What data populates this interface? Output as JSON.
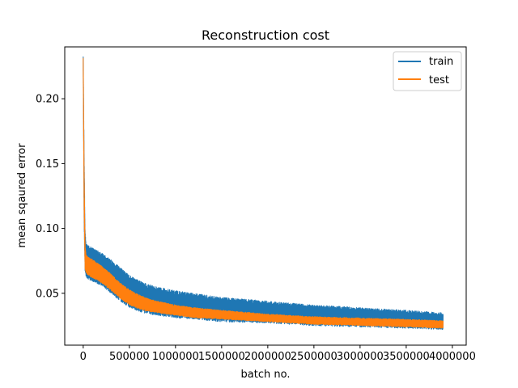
{
  "chart_data": {
    "type": "line",
    "title": "Reconstruction cost",
    "xlabel": "batch no.",
    "ylabel": "mean sqaured error",
    "xlim": [
      -200000,
      4150000
    ],
    "ylim": [
      0.01,
      0.24
    ],
    "xticks": [
      0,
      500000,
      1000000,
      1500000,
      2000000,
      2500000,
      3000000,
      3500000,
      4000000
    ],
    "xtick_labels": [
      "0",
      "500000",
      "1000000",
      "1500000",
      "2000000",
      "2500000",
      "3000000",
      "3500000",
      "4000000"
    ],
    "yticks": [
      0.05,
      0.1,
      0.15,
      0.2
    ],
    "ytick_labels": [
      "0.05",
      "0.10",
      "0.15",
      "0.20"
    ],
    "grid": false,
    "legend_position": "top-right",
    "series": [
      {
        "name": "train",
        "color": "#1f77b4",
        "x": [
          0,
          10000,
          20000,
          30000,
          50000,
          100000,
          200000,
          300000,
          400000,
          500000,
          600000,
          700000,
          800000,
          1000000,
          1200000,
          1500000,
          2000000,
          2500000,
          3000000,
          3500000,
          3900000
        ],
        "upper": [
          0.234,
          0.16,
          0.1,
          0.088,
          0.087,
          0.085,
          0.081,
          0.076,
          0.07,
          0.064,
          0.06,
          0.057,
          0.055,
          0.052,
          0.05,
          0.047,
          0.044,
          0.041,
          0.039,
          0.037,
          0.035
        ],
        "lower": [
          0.22,
          0.1,
          0.066,
          0.063,
          0.061,
          0.059,
          0.056,
          0.05,
          0.044,
          0.039,
          0.036,
          0.034,
          0.033,
          0.031,
          0.03,
          0.028,
          0.027,
          0.025,
          0.024,
          0.023,
          0.022
        ]
      },
      {
        "name": "test",
        "color": "#ff7f0e",
        "x": [
          0,
          10000,
          20000,
          30000,
          50000,
          100000,
          200000,
          300000,
          400000,
          500000,
          600000,
          700000,
          800000,
          1000000,
          1200000,
          1500000,
          2000000,
          2500000,
          3000000,
          3500000,
          3900000
        ],
        "upper": [
          0.233,
          0.15,
          0.09,
          0.08,
          0.078,
          0.076,
          0.071,
          0.065,
          0.058,
          0.053,
          0.049,
          0.046,
          0.044,
          0.041,
          0.039,
          0.037,
          0.034,
          0.032,
          0.031,
          0.03,
          0.029
        ],
        "lower": [
          0.222,
          0.11,
          0.068,
          0.066,
          0.064,
          0.062,
          0.058,
          0.052,
          0.046,
          0.041,
          0.038,
          0.036,
          0.035,
          0.033,
          0.031,
          0.03,
          0.028,
          0.026,
          0.025,
          0.024,
          0.023
        ]
      }
    ]
  }
}
